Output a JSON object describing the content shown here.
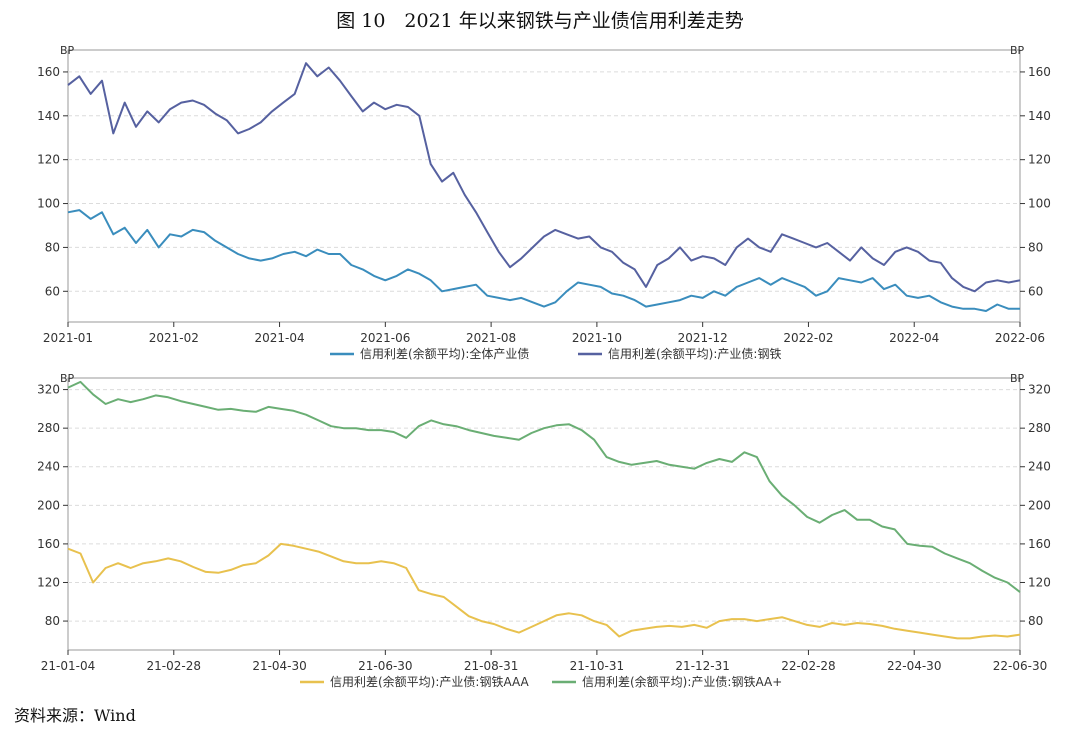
{
  "title": "图 10　2021 年以来钢铁与产业债信用利差走势",
  "source": "资料来源：Wind",
  "colors": {
    "blue": "#3a8dbd",
    "navy": "#5661a0",
    "yellow": "#e8c14e",
    "green": "#6aae74",
    "axis": "#333333",
    "grid": "#dcdcdc",
    "frame": "#9a9a9a"
  },
  "chart_data": [
    {
      "type": "line",
      "unit_left": "BP",
      "unit_right": "BP",
      "x_ticks": [
        "2021-01",
        "2021-02",
        "2021-04",
        "2021-06",
        "2021-08",
        "2021-10",
        "2021-12",
        "2022-02",
        "2022-04",
        "2022-06"
      ],
      "y_ticks": [
        60,
        80,
        100,
        120,
        140,
        160
      ],
      "ylim": [
        46,
        170
      ],
      "grid": true,
      "legend_position": "bottom",
      "series": [
        {
          "name": "信用利差(余额平均):全体产业债",
          "color": "#3a8dbd",
          "values": [
            96,
            97,
            93,
            96,
            86,
            89,
            82,
            88,
            80,
            86,
            85,
            88,
            87,
            83,
            80,
            77,
            75,
            74,
            75,
            77,
            78,
            76,
            79,
            77,
            77,
            72,
            70,
            67,
            65,
            67,
            70,
            68,
            65,
            60,
            61,
            62,
            63,
            58,
            57,
            56,
            57,
            55,
            53,
            55,
            60,
            64,
            63,
            62,
            59,
            58,
            56,
            53,
            54,
            55,
            56,
            58,
            57,
            60,
            58,
            62,
            64,
            66,
            63,
            66,
            64,
            62,
            58,
            60,
            66,
            65,
            64,
            66,
            61,
            63,
            58,
            57,
            58,
            55,
            53,
            52,
            52,
            51,
            54,
            52,
            52
          ]
        },
        {
          "name": "信用利差(余额平均):产业债:钢铁",
          "color": "#5661a0",
          "values": [
            154,
            158,
            150,
            156,
            132,
            146,
            135,
            142,
            137,
            143,
            146,
            147,
            145,
            141,
            138,
            132,
            134,
            137,
            142,
            146,
            150,
            164,
            158,
            162,
            156,
            149,
            142,
            146,
            143,
            145,
            144,
            140,
            118,
            110,
            114,
            104,
            96,
            87,
            78,
            71,
            75,
            80,
            85,
            88,
            86,
            84,
            85,
            80,
            78,
            73,
            70,
            62,
            72,
            75,
            80,
            74,
            76,
            75,
            72,
            80,
            84,
            80,
            78,
            86,
            84,
            82,
            80,
            82,
            78,
            74,
            80,
            75,
            72,
            78,
            80,
            78,
            74,
            73,
            66,
            62,
            60,
            64,
            65,
            64,
            65
          ]
        }
      ]
    },
    {
      "type": "line",
      "unit_left": "BP",
      "unit_right": "BP",
      "x_ticks": [
        "21-01-04",
        "21-02-28",
        "21-04-30",
        "21-06-30",
        "21-08-31",
        "21-10-31",
        "21-12-31",
        "22-02-28",
        "22-04-30",
        "22-06-30"
      ],
      "y_ticks": [
        80,
        120,
        160,
        200,
        240,
        280,
        320
      ],
      "ylim": [
        50,
        332
      ],
      "grid": true,
      "legend_position": "bottom",
      "series": [
        {
          "name": "信用利差(余额平均):产业债:钢铁AAA",
          "color": "#e8c14e",
          "values": [
            155,
            150,
            120,
            135,
            140,
            135,
            140,
            142,
            145,
            142,
            136,
            131,
            130,
            133,
            138,
            140,
            148,
            160,
            158,
            155,
            152,
            147,
            142,
            140,
            140,
            142,
            140,
            135,
            112,
            108,
            105,
            95,
            85,
            80,
            77,
            72,
            68,
            74,
            80,
            86,
            88,
            86,
            80,
            76,
            64,
            70,
            72,
            74,
            75,
            74,
            76,
            73,
            80,
            82,
            82,
            80,
            82,
            84,
            80,
            76,
            74,
            78,
            76,
            78,
            77,
            75,
            72,
            70,
            68,
            66,
            64,
            62,
            62,
            64,
            65,
            64,
            66
          ]
        },
        {
          "name": "信用利差(余额平均):产业债:钢铁AA+",
          "color": "#6aae74",
          "values": [
            322,
            328,
            315,
            305,
            310,
            307,
            310,
            314,
            312,
            308,
            305,
            302,
            299,
            300,
            298,
            297,
            302,
            300,
            298,
            294,
            288,
            282,
            280,
            280,
            278,
            278,
            276,
            270,
            282,
            288,
            284,
            282,
            278,
            275,
            272,
            270,
            268,
            275,
            280,
            283,
            284,
            278,
            268,
            250,
            245,
            242,
            244,
            246,
            242,
            240,
            238,
            244,
            248,
            245,
            255,
            250,
            225,
            210,
            200,
            188,
            182,
            190,
            195,
            185,
            185,
            178,
            175,
            160,
            158,
            157,
            150,
            145,
            140,
            132,
            125,
            120,
            110
          ]
        }
      ]
    }
  ]
}
